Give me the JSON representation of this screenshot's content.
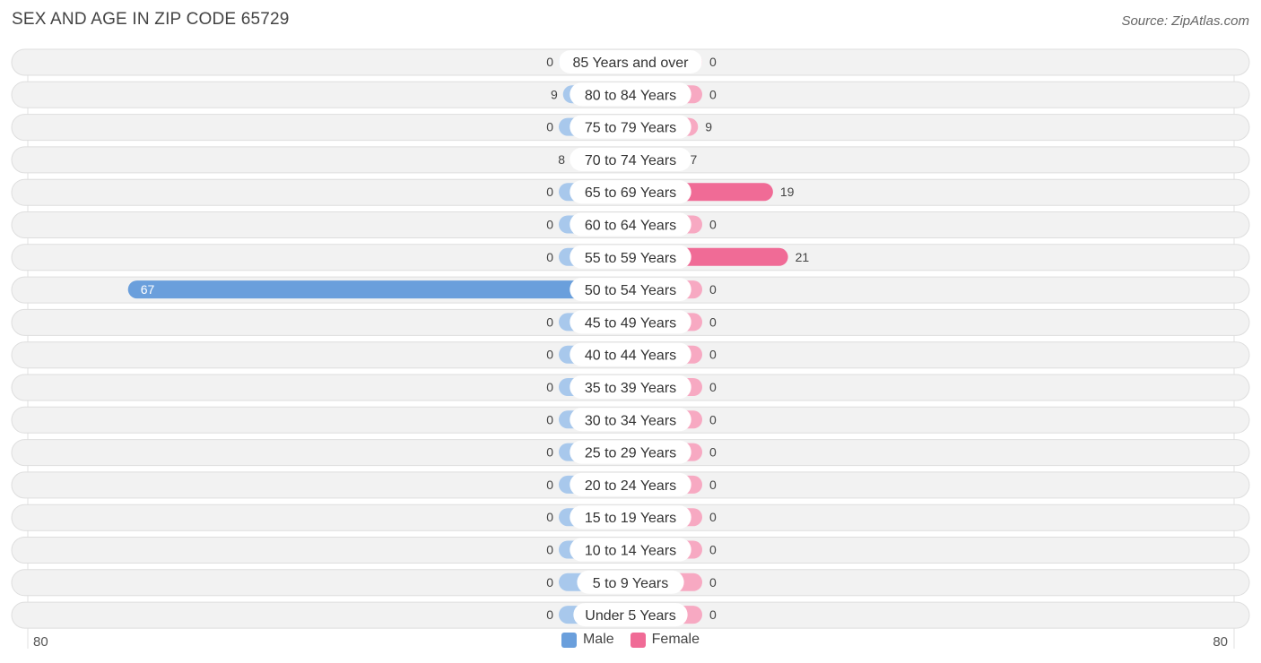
{
  "title": "SEX AND AGE IN ZIP CODE 65729",
  "source": "Source: ZipAtlas.com",
  "colors": {
    "male": "#6a9fdc",
    "male_light": "#a8c8ec",
    "female": "#f06b96",
    "female_light": "#f7a9c2",
    "row_bg": "#f2f2f2",
    "row_border": "#dedede"
  },
  "legend": {
    "male": "Male",
    "female": "Female"
  },
  "axis": {
    "left_label": "80",
    "right_label": "80"
  },
  "chart_data": {
    "type": "bar",
    "orientation": "horizontal-butterfly",
    "categories": [
      "85 Years and over",
      "80 to 84 Years",
      "75 to 79 Years",
      "70 to 74 Years",
      "65 to 69 Years",
      "60 to 64 Years",
      "55 to 59 Years",
      "50 to 54 Years",
      "45 to 49 Years",
      "40 to 44 Years",
      "35 to 39 Years",
      "30 to 34 Years",
      "25 to 29 Years",
      "20 to 24 Years",
      "15 to 19 Years",
      "10 to 14 Years",
      "5 to 9 Years",
      "Under 5 Years"
    ],
    "series": [
      {
        "name": "Male",
        "values": [
          0,
          9,
          0,
          8,
          0,
          0,
          0,
          67,
          0,
          0,
          0,
          0,
          0,
          0,
          0,
          0,
          0,
          0
        ]
      },
      {
        "name": "Female",
        "values": [
          0,
          0,
          9,
          7,
          19,
          0,
          21,
          0,
          0,
          0,
          0,
          0,
          0,
          0,
          0,
          0,
          0,
          0
        ]
      }
    ],
    "xlim": [
      -80,
      80
    ],
    "legend_position": "bottom-center"
  }
}
